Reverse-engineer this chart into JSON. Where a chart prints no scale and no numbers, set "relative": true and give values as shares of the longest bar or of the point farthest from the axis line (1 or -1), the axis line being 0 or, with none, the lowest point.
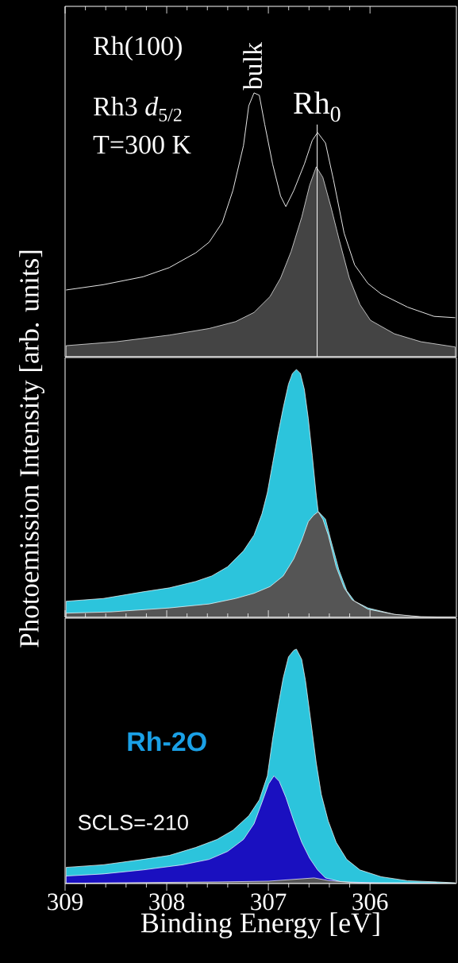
{
  "chart_data": [
    {
      "type": "area",
      "relative": true,
      "xlim": [
        309,
        305.15
      ],
      "xticks": [
        309,
        308,
        307,
        306
      ],
      "tick_labels": false,
      "annotations": [
        "Rh(100)",
        "Rh3 *d*$_{5/2}$",
        "T=300 K",
        {
          "text": "bulk",
          "x": 307.14,
          "y": 1.0
        }
      ],
      "ref_lines": [
        {
          "axis": "x",
          "value": 306.52,
          "label": "Rh$_{0}$",
          "color": "#ffffff"
        }
      ],
      "series": [
        {
          "color": "#444444",
          "x": [
            308.99,
            308.495,
            307.974,
            307.583,
            307.323,
            307.141,
            306.984,
            306.88,
            306.776,
            306.672,
            306.594,
            306.529,
            306.464,
            306.385,
            306.307,
            306.203,
            306.099,
            305.995,
            305.76,
            305.5,
            305.161
          ],
          "values": [
            0.042,
            0.057,
            0.082,
            0.107,
            0.133,
            0.168,
            0.228,
            0.298,
            0.399,
            0.529,
            0.65,
            0.72,
            0.68,
            0.569,
            0.449,
            0.298,
            0.198,
            0.138,
            0.087,
            0.057,
            0.037
          ]
        },
        {
          "type": "line",
          "color": "#ffffff",
          "x": [
            308.99,
            308.625,
            308.234,
            307.974,
            307.714,
            307.583,
            307.453,
            307.349,
            307.245,
            307.193,
            307.141,
            307.089,
            307.036,
            306.958,
            306.88,
            306.828,
            306.75,
            306.646,
            306.568,
            306.516,
            306.438,
            306.359,
            306.255,
            306.151,
            306.021,
            305.891,
            305.63,
            305.37,
            305.161
          ],
          "values": [
            0.253,
            0.273,
            0.303,
            0.338,
            0.394,
            0.434,
            0.509,
            0.63,
            0.8,
            0.951,
            1.0,
            0.991,
            0.881,
            0.73,
            0.609,
            0.569,
            0.63,
            0.73,
            0.82,
            0.85,
            0.81,
            0.67,
            0.469,
            0.348,
            0.278,
            0.238,
            0.188,
            0.153,
            0.148
          ]
        }
      ]
    },
    {
      "type": "area",
      "relative": true,
      "xlim": [
        309,
        305.15
      ],
      "xticks": [
        309,
        308,
        307,
        306
      ],
      "tick_labels": false,
      "ylabel": "Photoemission Intensity [arb. units]",
      "series": [
        {
          "color": "#2cc4dc",
          "x": [
            308.99,
            308.625,
            308.234,
            307.974,
            307.714,
            307.557,
            307.401,
            307.245,
            307.141,
            307.063,
            307.01,
            306.958,
            306.906,
            306.854,
            306.802,
            306.763,
            306.724,
            306.685,
            306.646,
            306.607,
            306.568,
            306.529,
            306.51,
            306.438,
            306.385,
            306.307,
            306.229,
            306.151,
            306.021,
            305.76,
            305.5,
            305.161
          ],
          "values": [
            0.065,
            0.076,
            0.103,
            0.119,
            0.145,
            0.167,
            0.204,
            0.268,
            0.332,
            0.418,
            0.503,
            0.621,
            0.738,
            0.845,
            0.941,
            0.984,
            1.0,
            0.984,
            0.92,
            0.802,
            0.653,
            0.493,
            0.428,
            0.396,
            0.311,
            0.193,
            0.108,
            0.065,
            0.038,
            0.012,
            0.001,
            0
          ]
        },
        {
          "color": "#555555",
          "x": [
            308.99,
            308.547,
            307.974,
            307.583,
            307.323,
            307.141,
            306.984,
            306.854,
            306.75,
            306.672,
            306.607,
            306.555,
            306.51,
            306.464,
            306.411,
            306.333,
            306.255,
            306.177,
            306.021,
            305.76,
            305.5,
            305.161
          ],
          "values": [
            0.017,
            0.022,
            0.038,
            0.054,
            0.076,
            0.097,
            0.124,
            0.167,
            0.236,
            0.311,
            0.386,
            0.412,
            0.426,
            0.396,
            0.332,
            0.204,
            0.119,
            0.071,
            0.033,
            0.012,
            0.003,
            0
          ]
        }
      ]
    },
    {
      "type": "area",
      "relative": true,
      "xlim": [
        309,
        305.15
      ],
      "xticks": [
        309,
        308,
        307,
        306
      ],
      "tick_labels": "x",
      "xlabel": "Binding Energy [eV]",
      "annotations": [
        "Rh-2O",
        "SCLS=-210"
      ],
      "series": [
        {
          "color": "#2cc4dc",
          "x": [
            308.99,
            308.625,
            308.234,
            307.974,
            307.714,
            307.505,
            307.349,
            307.193,
            307.089,
            307.01,
            306.958,
            306.906,
            306.854,
            306.802,
            306.75,
            306.724,
            306.672,
            306.635,
            306.583,
            306.529,
            306.479,
            306.411,
            306.333,
            306.229,
            306.099,
            305.891,
            305.63,
            305.344,
            305.161
          ],
          "values": [
            0.069,
            0.08,
            0.103,
            0.12,
            0.154,
            0.188,
            0.227,
            0.289,
            0.357,
            0.459,
            0.617,
            0.753,
            0.877,
            0.967,
            0.995,
            1.0,
            0.956,
            0.866,
            0.696,
            0.515,
            0.38,
            0.267,
            0.176,
            0.103,
            0.058,
            0.029,
            0.012,
            0.007,
            0.003
          ]
        },
        {
          "color": "#1a10c0",
          "x": [
            308.99,
            308.625,
            308.234,
            307.844,
            307.583,
            307.401,
            307.245,
            307.141,
            307.063,
            306.997,
            306.945,
            306.893,
            306.828,
            306.75,
            306.672,
            306.594,
            306.516,
            306.438,
            306.281,
            305.891,
            305.344
          ],
          "values": [
            0.032,
            0.041,
            0.058,
            0.08,
            0.103,
            0.137,
            0.188,
            0.255,
            0.346,
            0.425,
            0.459,
            0.436,
            0.368,
            0.267,
            0.176,
            0.108,
            0.058,
            0.024,
            0.007,
            0.003,
            0.003
          ]
        },
        {
          "color": "#555555",
          "x": [
            308.99,
            307.5,
            307.0,
            306.55,
            306.4,
            306.1,
            305.161
          ],
          "values": [
            0.001,
            0.007,
            0.01,
            0.024,
            0.012,
            0.002,
            0
          ]
        }
      ]
    }
  ]
}
